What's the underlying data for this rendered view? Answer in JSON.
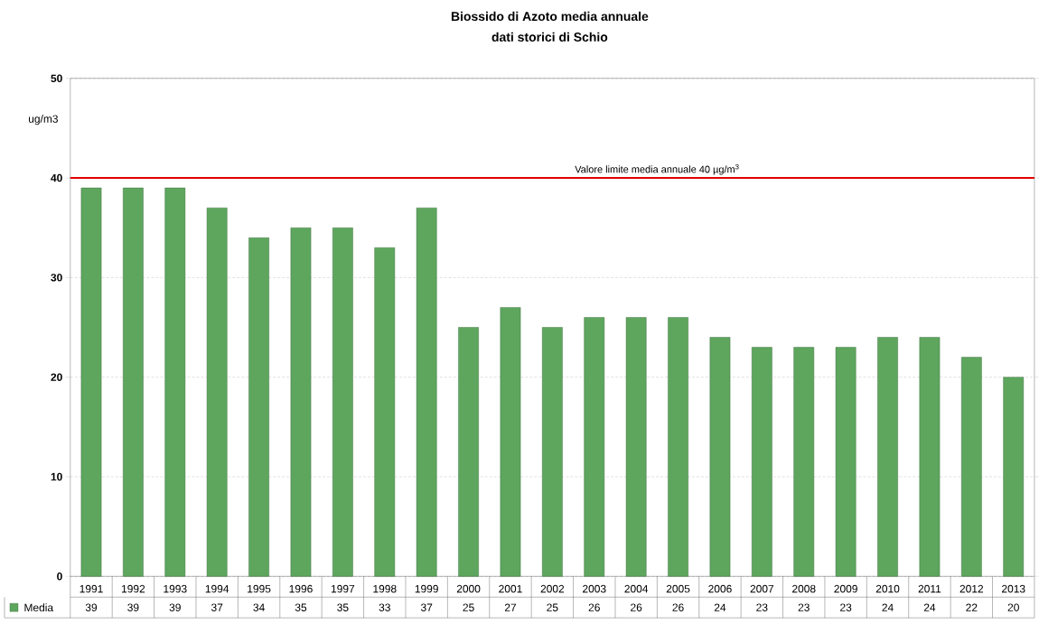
{
  "chart_data": {
    "type": "bar",
    "title": "Biossido di Azoto media annuale",
    "subtitle": "dati storici di Schio",
    "ylabel": "ug/m3",
    "categories": [
      "1991",
      "1992",
      "1993",
      "1994",
      "1995",
      "1996",
      "1997",
      "1998",
      "1999",
      "2000",
      "2001",
      "2002",
      "2003",
      "2004",
      "2005",
      "2006",
      "2007",
      "2008",
      "2009",
      "2010",
      "2011",
      "2012",
      "2013"
    ],
    "series": [
      {
        "name": "Media",
        "color": "#5ea65e",
        "values": [
          39,
          39,
          39,
          37,
          34,
          35,
          35,
          33,
          37,
          25,
          27,
          25,
          26,
          26,
          26,
          24,
          23,
          23,
          23,
          24,
          24,
          22,
          20
        ]
      }
    ],
    "ylim": [
      0,
      50
    ],
    "yticks": [
      0,
      10,
      20,
      30,
      40,
      50
    ],
    "grid": "y",
    "ref_lines": [
      {
        "axis": "y",
        "value": 40,
        "label": "Valore limite media annuale 40 µg/m$^{3}$",
        "color": "#e00000"
      }
    ],
    "data_labels": true,
    "legend": "bottom left"
  }
}
